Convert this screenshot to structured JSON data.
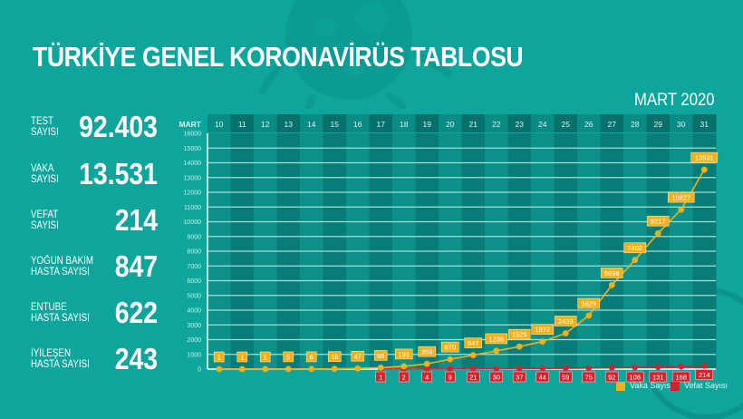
{
  "title": "TÜRKİYE GENEL KORONAVİRÜS TABLOSU",
  "period": "MART 2020",
  "stats": [
    {
      "label": "TEST\nSAYISI",
      "value": "92.403"
    },
    {
      "label": "VAKA\nSAYISI",
      "value": "13.531"
    },
    {
      "label": "VEFAT\nSAYISI",
      "value": "214"
    },
    {
      "label": "YOĞUN BAKIM\nHASTA SAYISI",
      "value": "847"
    },
    {
      "label": "ENTÜBE\nHASTA SAYISI",
      "value": "622"
    },
    {
      "label": "İYİLEŞEN\nHASTA SAYISI",
      "value": "243"
    }
  ],
  "legend": {
    "cases": "Vaka Sayısı",
    "deaths": "Vefat Sayısı"
  },
  "colors": {
    "background": "#0ea59c",
    "col_dark": "#087d77",
    "col_light": "#0b9189",
    "header_dark": "#06706a",
    "header_light": "#0a8b83",
    "cases": "#f2b019",
    "deaths": "#d7212d"
  },
  "chart_data": {
    "type": "line",
    "title": "TÜRKİYE GENEL KORONAVİRÜS TABLOSU",
    "subtitle": "MART 2020",
    "xlabel": "MART",
    "ylabel": "",
    "x": [
      10,
      11,
      12,
      13,
      14,
      15,
      16,
      17,
      18,
      19,
      20,
      21,
      22,
      23,
      24,
      25,
      26,
      27,
      28,
      29,
      30,
      31
    ],
    "yticks": [
      0,
      1000,
      2000,
      3000,
      4000,
      5000,
      6000,
      7000,
      8000,
      9000,
      10000,
      11000,
      12000,
      13000,
      14000,
      15000,
      16000
    ],
    "ylim": [
      0,
      16000
    ],
    "grid": true,
    "legend_position": "bottom-right",
    "series": [
      {
        "name": "Vaka Sayısı",
        "color": "#f2b019",
        "values": [
          1,
          1,
          1,
          5,
          6,
          18,
          47,
          98,
          191,
          359,
          670,
          947,
          1236,
          1529,
          1872,
          2433,
          3629,
          5698,
          7402,
          9217,
          10827,
          13531
        ]
      },
      {
        "name": "Vefat Sayısı",
        "color": "#d7212d",
        "values": [
          null,
          null,
          null,
          null,
          null,
          null,
          null,
          1,
          2,
          4,
          9,
          21,
          30,
          37,
          44,
          59,
          75,
          92,
          108,
          131,
          168,
          214
        ]
      }
    ]
  }
}
